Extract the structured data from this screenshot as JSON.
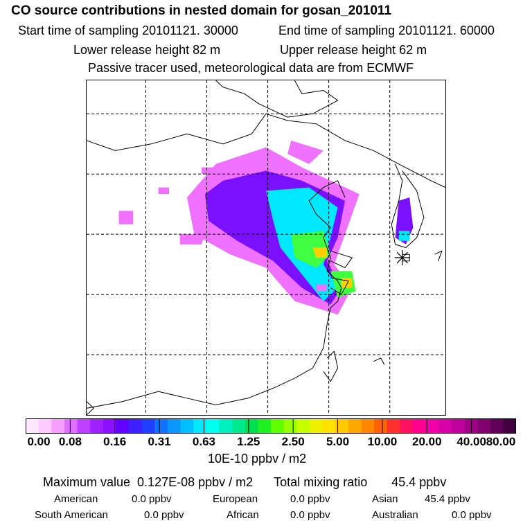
{
  "header": {
    "title": "CO  source contributions in nested domain for gosan_201011",
    "start_label": "Start time of sampling 20101121. 30000",
    "end_label": "End time of sampling 20101121. 60000",
    "lower_label": "Lower release height   82 m",
    "upper_label": "Upper release height   62 m",
    "passive_label": "Passive tracer used, meteorological data are from ECMWF"
  },
  "chart_data": {
    "type": "heatmap",
    "title": "CO  source contributions in nested domain for gosan_201011",
    "colorbar": {
      "unit": "10E-10 ppbv / m2",
      "tick_labels": [
        "0.00",
        "0.08",
        "0.16",
        "0.31",
        "0.63",
        "1.25",
        "2.50",
        "5.00",
        "10.00",
        "20.00",
        "40.00",
        "80.00"
      ],
      "tick_values": [
        0.0,
        0.08,
        0.16,
        0.31,
        0.63,
        1.25,
        2.5,
        5.0,
        10.0,
        20.0,
        40.0,
        80.0
      ],
      "colors": [
        "#ffe8ff",
        "#ffc8ff",
        "#f5a0ff",
        "#e070ff",
        "#c040ff",
        "#a020ff",
        "#8a10ff",
        "#6000ff",
        "#4020ff",
        "#2040ff",
        "#1070ff",
        "#0a98ff",
        "#00c0ff",
        "#00e8ff",
        "#00ffee",
        "#00f0c0",
        "#00e890",
        "#00e050",
        "#20f020",
        "#60ff00",
        "#98ff00",
        "#c8ff00",
        "#eef000",
        "#ffe000",
        "#ffc800",
        "#ffa800",
        "#ff8800",
        "#ff6000",
        "#ff3030",
        "#ff1060",
        "#ff0090",
        "#f000a8",
        "#d800a8",
        "#c0009a",
        "#a00088",
        "#800070",
        "#600058",
        "#400040"
      ]
    },
    "max_value": "0.127E-08",
    "total_mixing_ratio": 45.4,
    "regions": [
      {
        "name": "American",
        "value": 0.0
      },
      {
        "name": "European",
        "value": 0.0
      },
      {
        "name": "Asian",
        "value": 45.4
      },
      {
        "name": "South American",
        "value": 0.0
      },
      {
        "name": "African",
        "value": 0.0
      },
      {
        "name": "Australian",
        "value": 0.0
      }
    ],
    "contribution_areas": [
      {
        "level": 1,
        "pts": [
          [
            0.36,
            0.25
          ],
          [
            0.5,
            0.2
          ],
          [
            0.6,
            0.26
          ],
          [
            0.76,
            0.34
          ],
          [
            0.72,
            0.46
          ],
          [
            0.69,
            0.55
          ],
          [
            0.74,
            0.62
          ],
          [
            0.7,
            0.7
          ],
          [
            0.58,
            0.66
          ],
          [
            0.5,
            0.56
          ],
          [
            0.4,
            0.52
          ],
          [
            0.3,
            0.46
          ],
          [
            0.28,
            0.35
          ]
        ]
      },
      {
        "level": 2,
        "pts": [
          [
            0.38,
            0.3
          ],
          [
            0.5,
            0.27
          ],
          [
            0.6,
            0.3
          ],
          [
            0.72,
            0.36
          ],
          [
            0.7,
            0.47
          ],
          [
            0.67,
            0.54
          ],
          [
            0.71,
            0.62
          ],
          [
            0.68,
            0.67
          ],
          [
            0.6,
            0.62
          ],
          [
            0.52,
            0.54
          ],
          [
            0.42,
            0.48
          ],
          [
            0.34,
            0.42
          ],
          [
            0.33,
            0.34
          ]
        ]
      },
      {
        "level": 3,
        "pts": [
          [
            0.5,
            0.33
          ],
          [
            0.62,
            0.32
          ],
          [
            0.7,
            0.38
          ],
          [
            0.68,
            0.47
          ],
          [
            0.66,
            0.55
          ],
          [
            0.7,
            0.62
          ],
          [
            0.66,
            0.66
          ],
          [
            0.6,
            0.58
          ],
          [
            0.54,
            0.5
          ],
          [
            0.52,
            0.42
          ]
        ]
      },
      {
        "level": 4,
        "pts": [
          [
            0.57,
            0.46
          ],
          [
            0.66,
            0.45
          ],
          [
            0.68,
            0.52
          ],
          [
            0.64,
            0.56
          ],
          [
            0.58,
            0.53
          ]
        ]
      },
      {
        "level": 4,
        "pts": [
          [
            0.68,
            0.57
          ],
          [
            0.74,
            0.57
          ],
          [
            0.75,
            0.63
          ],
          [
            0.7,
            0.65
          ]
        ]
      },
      {
        "level": 5,
        "pts": [
          [
            0.63,
            0.5
          ],
          [
            0.67,
            0.5
          ],
          [
            0.67,
            0.53
          ],
          [
            0.64,
            0.53
          ]
        ]
      },
      {
        "level": 5,
        "pts": [
          [
            0.71,
            0.59
          ],
          [
            0.74,
            0.59
          ],
          [
            0.74,
            0.62
          ],
          [
            0.71,
            0.62
          ]
        ]
      },
      {
        "level": 2,
        "pts": [
          [
            0.87,
            0.36
          ],
          [
            0.9,
            0.35
          ],
          [
            0.91,
            0.44
          ],
          [
            0.89,
            0.49
          ],
          [
            0.86,
            0.47
          ]
        ]
      },
      {
        "level": 3,
        "pts": [
          [
            0.87,
            0.45
          ],
          [
            0.9,
            0.45
          ],
          [
            0.9,
            0.48
          ],
          [
            0.87,
            0.48
          ]
        ]
      },
      {
        "level": 1,
        "pts": [
          [
            0.26,
            0.46
          ],
          [
            0.33,
            0.46
          ],
          [
            0.32,
            0.49
          ],
          [
            0.26,
            0.49
          ]
        ]
      },
      {
        "level": 1,
        "pts": [
          [
            0.09,
            0.39
          ],
          [
            0.13,
            0.39
          ],
          [
            0.13,
            0.43
          ],
          [
            0.09,
            0.43
          ]
        ]
      },
      {
        "level": 1,
        "pts": [
          [
            0.57,
            0.18
          ],
          [
            0.66,
            0.21
          ],
          [
            0.62,
            0.25
          ],
          [
            0.56,
            0.22
          ]
        ]
      },
      {
        "level": 1,
        "pts": [
          [
            0.2,
            0.32
          ],
          [
            0.23,
            0.32
          ],
          [
            0.23,
            0.34
          ],
          [
            0.2,
            0.34
          ]
        ]
      },
      {
        "level": 1,
        "pts": [
          [
            0.32,
            0.26
          ],
          [
            0.36,
            0.26
          ],
          [
            0.36,
            0.28
          ],
          [
            0.32,
            0.28
          ]
        ]
      },
      {
        "level": 1,
        "pts": [
          [
            0.64,
            0.61
          ],
          [
            0.67,
            0.61
          ],
          [
            0.67,
            0.63
          ],
          [
            0.64,
            0.63
          ]
        ]
      }
    ],
    "coastlines": [
      [
        [
          0.58,
          0.0
        ],
        [
          0.6,
          0.04
        ],
        [
          0.66,
          0.03
        ],
        [
          0.7,
          0.06
        ],
        [
          0.63,
          0.1
        ],
        [
          0.56,
          0.11
        ],
        [
          0.48,
          0.07
        ],
        [
          0.44,
          0.04
        ],
        [
          0.38,
          0.02
        ],
        [
          0.36,
          0.0
        ]
      ],
      [
        [
          0.0,
          0.18
        ],
        [
          0.08,
          0.21
        ],
        [
          0.18,
          0.19
        ],
        [
          0.28,
          0.16
        ],
        [
          0.38,
          0.19
        ],
        [
          0.46,
          0.16
        ],
        [
          0.5,
          0.1
        ],
        [
          0.56,
          0.12
        ],
        [
          0.64,
          0.13
        ],
        [
          0.72,
          0.18
        ],
        [
          0.8,
          0.21
        ],
        [
          0.87,
          0.25
        ],
        [
          0.96,
          0.3
        ],
        [
          1.0,
          0.32
        ]
      ],
      [
        [
          0.72,
          0.35
        ],
        [
          0.7,
          0.3
        ],
        [
          0.66,
          0.32
        ],
        [
          0.62,
          0.36
        ],
        [
          0.64,
          0.4
        ],
        [
          0.68,
          0.44
        ],
        [
          0.66,
          0.47
        ],
        [
          0.68,
          0.53
        ],
        [
          0.67,
          0.57
        ],
        [
          0.7,
          0.6
        ],
        [
          0.71,
          0.62
        ],
        [
          0.7,
          0.66
        ],
        [
          0.68,
          0.68
        ],
        [
          0.67,
          0.73
        ],
        [
          0.66,
          0.8
        ],
        [
          0.63,
          0.86
        ],
        [
          0.58,
          0.89
        ],
        [
          0.52,
          0.92
        ],
        [
          0.45,
          0.95
        ],
        [
          0.36,
          0.97
        ],
        [
          0.28,
          0.95
        ],
        [
          0.2,
          0.93
        ],
        [
          0.1,
          0.96
        ],
        [
          0.0,
          0.98
        ]
      ],
      [
        [
          0.86,
          0.25
        ],
        [
          0.88,
          0.3
        ],
        [
          0.87,
          0.36
        ],
        [
          0.85,
          0.43
        ],
        [
          0.86,
          0.49
        ],
        [
          0.89,
          0.5
        ],
        [
          0.92,
          0.47
        ],
        [
          0.94,
          0.41
        ],
        [
          0.92,
          0.33
        ],
        [
          0.88,
          0.27
        ]
      ],
      [
        [
          0.68,
          0.51
        ],
        [
          0.74,
          0.53
        ],
        [
          0.72,
          0.56
        ],
        [
          0.68,
          0.54
        ]
      ],
      [
        [
          0.68,
          0.59
        ],
        [
          0.73,
          0.6
        ],
        [
          0.71,
          0.64
        ],
        [
          0.68,
          0.62
        ]
      ],
      [
        [
          0.67,
          0.83
        ],
        [
          0.69,
          0.81
        ],
        [
          0.7,
          0.86
        ],
        [
          0.68,
          0.9
        ],
        [
          0.66,
          0.87
        ]
      ],
      [
        [
          0.88,
          0.52
        ],
        [
          0.9,
          0.52
        ],
        [
          0.9,
          0.54
        ],
        [
          0.88,
          0.54
        ]
      ],
      [
        [
          0.97,
          0.52
        ],
        [
          0.99,
          0.51
        ],
        [
          0.98,
          0.54
        ]
      ],
      [
        [
          0.8,
          0.84
        ],
        [
          0.82,
          0.83
        ],
        [
          0.83,
          0.85
        ]
      ],
      [
        [
          0.0,
          0.96
        ],
        [
          0.02,
          0.98
        ],
        [
          0.0,
          1.0
        ]
      ]
    ],
    "gridlines_x": [
      0.165,
      0.335,
      0.505,
      0.675,
      0.845
    ],
    "gridlines_y": [
      0.1,
      0.28,
      0.46,
      0.64,
      0.82
    ],
    "receptor": [
      0.88,
      0.53
    ]
  }
}
